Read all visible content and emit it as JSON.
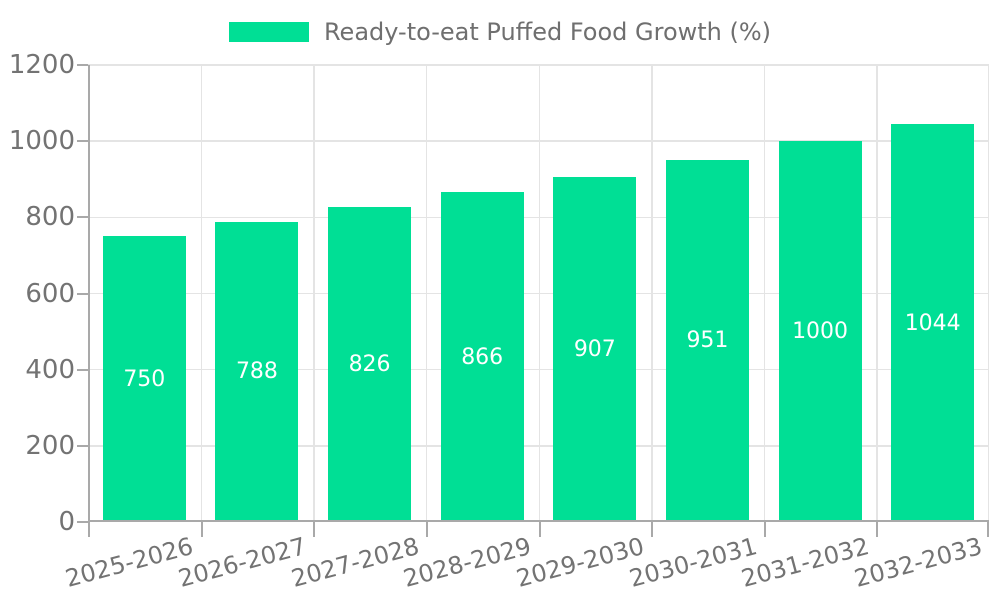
{
  "legend": {
    "label": "Ready-to-eat Puffed Food Growth (%)"
  },
  "chart_data": {
    "type": "bar",
    "title": "Ready-to-eat Puffed Food Growth (%)",
    "categories": [
      "2025-2026",
      "2026-2027",
      "2027-2028",
      "2028-2029",
      "2029-2030",
      "2030-2031",
      "2031-2032",
      "2032-2033"
    ],
    "values": [
      750,
      788,
      826,
      866,
      907,
      951,
      1000,
      1044
    ],
    "bar_labels": [
      "750",
      "788",
      "826",
      "866",
      "907",
      "951",
      "1000",
      "1044"
    ],
    "xlabel": "",
    "ylabel": "",
    "ylim": [
      0,
      1200
    ],
    "yticks": [
      0,
      200,
      400,
      600,
      800,
      1000,
      1200
    ],
    "grid": "both",
    "legend_position": "top-center",
    "bar_label_position": "center-inside",
    "colors": {
      "bar": "#00DF95",
      "bar_label": "#ffffff",
      "grid": "#e4e4e4",
      "axis_line": "#a9a9a9",
      "axis_text": "#737373",
      "legend_text": "#6f6f6f",
      "background": "#ffffff"
    }
  }
}
